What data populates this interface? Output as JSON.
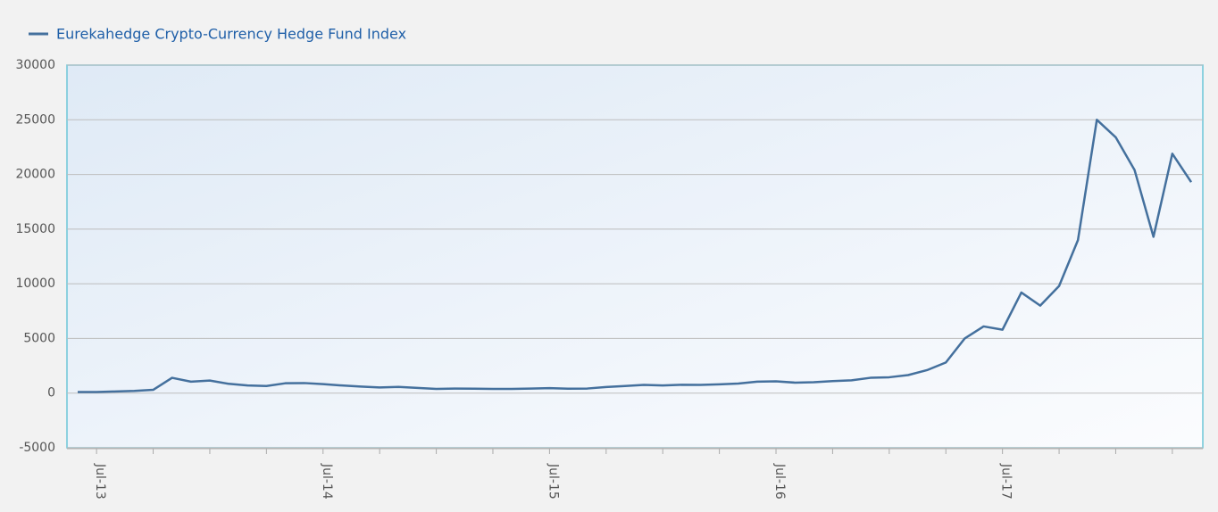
{
  "chart_data": {
    "type": "line",
    "categories": [
      null,
      "Jul-13",
      null,
      null,
      null,
      null,
      null,
      null,
      null,
      null,
      null,
      null,
      null,
      "Jul-14",
      null,
      null,
      null,
      null,
      null,
      null,
      null,
      null,
      null,
      null,
      null,
      "Jul-15",
      null,
      null,
      null,
      null,
      null,
      null,
      null,
      null,
      null,
      null,
      null,
      "Jul-16",
      null,
      null,
      null,
      null,
      null,
      null,
      null,
      null,
      null,
      null,
      null,
      "Jul-17",
      null,
      null,
      null,
      null,
      null,
      null,
      null,
      null,
      null,
      null
    ],
    "series": [
      {
        "name": "Eurekahedge Crypto-Currency Hedge Fund Index",
        "color": "#44709d",
        "values": [
          100,
          100,
          150,
          200,
          300,
          1400,
          1050,
          1150,
          850,
          700,
          650,
          900,
          920,
          820,
          700,
          600,
          520,
          570,
          480,
          380,
          420,
          400,
          380,
          380,
          420,
          460,
          400,
          420,
          560,
          650,
          750,
          700,
          760,
          750,
          800,
          870,
          1050,
          1080,
          960,
          1000,
          1100,
          1170,
          1400,
          1450,
          1650,
          2100,
          2800,
          5000,
          6100,
          5800,
          9200,
          8000,
          9800,
          14000,
          25000,
          23400,
          20400,
          14300,
          21900,
          19300
        ]
      }
    ],
    "ylim": [
      -5000,
      30000
    ],
    "yticks": [
      -5000,
      0,
      5000,
      10000,
      15000,
      20000,
      25000,
      30000
    ],
    "grid": true
  }
}
